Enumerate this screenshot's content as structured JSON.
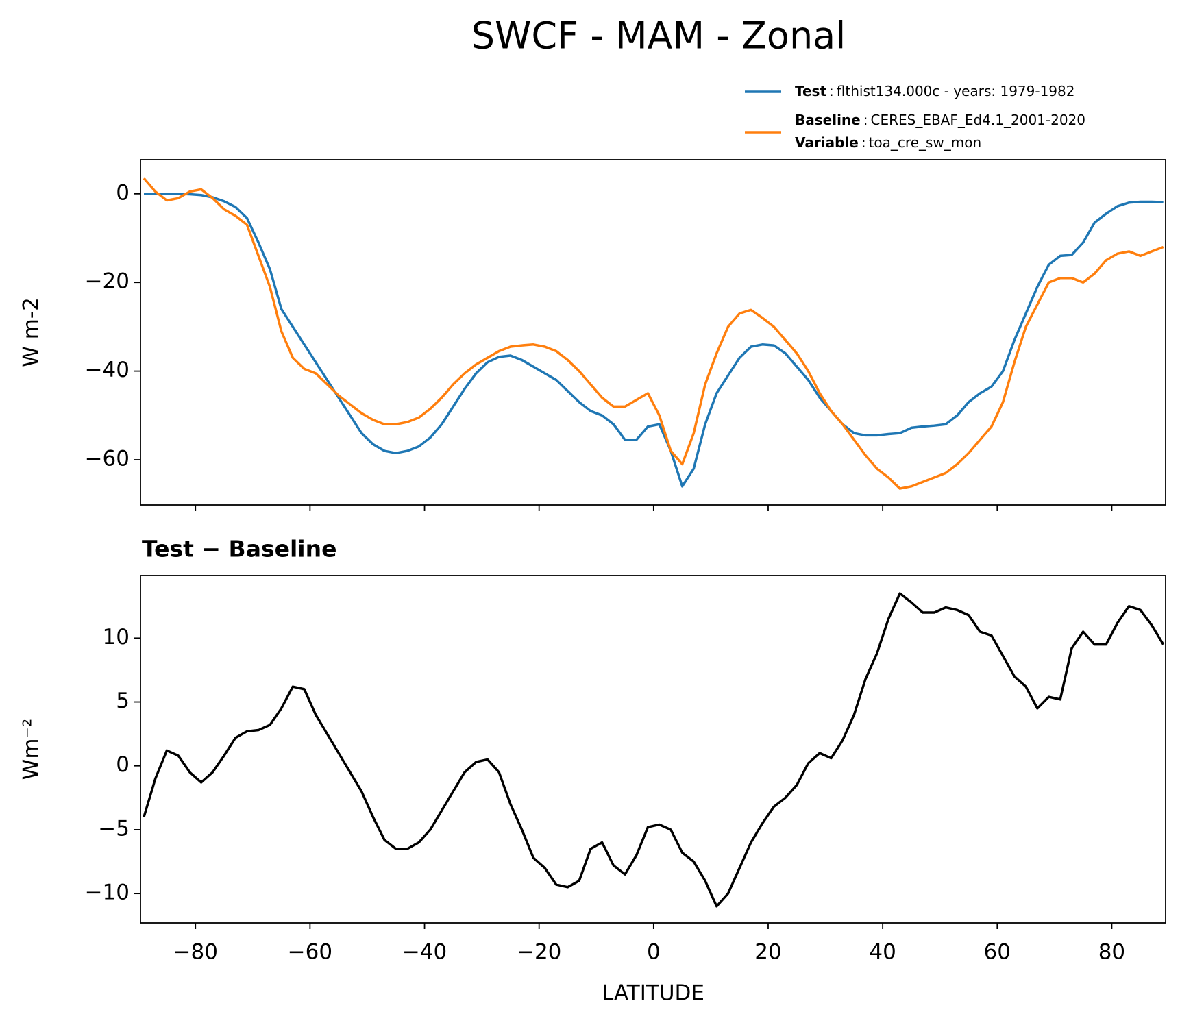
{
  "title": "SWCF - MAM - Zonal",
  "chart_data": [
    {
      "type": "line",
      "ylabel": "W m-2",
      "legend_separator": ":",
      "legend_note": {
        "label": "Variable",
        "text": "toa_cre_sw_mon"
      },
      "x": [
        -89,
        -87,
        -85,
        -83,
        -81,
        -79,
        -77,
        -75,
        -73,
        -71,
        -69,
        -67,
        -65,
        -63,
        -61,
        -59,
        -57,
        -55,
        -53,
        -51,
        -49,
        -47,
        -45,
        -43,
        -41,
        -39,
        -37,
        -35,
        -33,
        -31,
        -29,
        -27,
        -25,
        -23,
        -21,
        -19,
        -17,
        -15,
        -13,
        -11,
        -9,
        -7,
        -5,
        -3,
        -1,
        1,
        3,
        5,
        7,
        9,
        11,
        13,
        15,
        17,
        19,
        21,
        23,
        25,
        27,
        29,
        31,
        33,
        35,
        37,
        39,
        41,
        43,
        45,
        47,
        49,
        51,
        53,
        55,
        57,
        59,
        61,
        63,
        65,
        67,
        69,
        71,
        73,
        75,
        77,
        79,
        81,
        83,
        85,
        87,
        89
      ],
      "series": [
        {
          "name": "Test",
          "description": "flthist134.000c - years: 1979-1982",
          "color": "#1f77b4",
          "values": [
            0,
            0,
            0,
            0,
            -0.1,
            -0.3,
            -0.8,
            -1.7,
            -3,
            -5.5,
            -11,
            -17,
            -26,
            -30,
            -34,
            -38,
            -42,
            -46,
            -50,
            -54,
            -56.5,
            -58,
            -58.5,
            -58,
            -57,
            -55,
            -52,
            -48,
            -44,
            -40.5,
            -38,
            -36.8,
            -36.5,
            -37.5,
            -39,
            -40.5,
            -42,
            -44.5,
            -47,
            -49,
            -50,
            -52,
            -55.5,
            -55.5,
            -52.5,
            -52,
            -58,
            -66,
            -62,
            -52,
            -45,
            -41,
            -37,
            -34.5,
            -34,
            -34.2,
            -36,
            -39,
            -42,
            -46,
            -49,
            -52,
            -54,
            -54.5,
            -54.5,
            -54.2,
            -54,
            -52.8,
            -52.5,
            -52.3,
            -52,
            -50,
            -47,
            -45,
            -43.5,
            -40,
            -33,
            -27,
            -21,
            -16,
            -14,
            -13.8,
            -11,
            -6.5,
            -4.5,
            -2.8,
            -2,
            -1.8,
            -1.8,
            -1.9
          ]
        },
        {
          "name": "Baseline",
          "description": "CERES_EBAF_Ed4.1_2001-2020",
          "color": "#ff7f0e",
          "values": [
            3.5,
            0.5,
            -1.5,
            -1,
            0.5,
            1,
            -1,
            -3.5,
            -5,
            -7,
            -14,
            -21,
            -31,
            -37,
            -39.5,
            -40.5,
            -43,
            -45.5,
            -47.5,
            -49.5,
            -51,
            -52,
            -52,
            -51.5,
            -50.5,
            -48.5,
            -46,
            -43,
            -40.5,
            -38.5,
            -37,
            -35.5,
            -34.5,
            -34.2,
            -34,
            -34.5,
            -35.5,
            -37.5,
            -40,
            -43,
            -46,
            -48,
            -48,
            -46.5,
            -45,
            -50,
            -58,
            -61,
            -54,
            -43,
            -36,
            -30,
            -27,
            -26.2,
            -28,
            -30,
            -33,
            -36,
            -40,
            -45,
            -49,
            -52,
            -55.5,
            -59,
            -62,
            -64,
            -66.5,
            -66,
            -65,
            -64,
            -63,
            -61,
            -58.5,
            -55.5,
            -52.5,
            -47,
            -38,
            -30,
            -25,
            -20,
            -19,
            -19,
            -20,
            -18,
            -15,
            -13.5,
            -13,
            -14,
            -13,
            -12
          ]
        }
      ],
      "xlim": [
        -89.6,
        89.4
      ],
      "xticks": [
        -80,
        -60,
        -40,
        -20,
        0,
        20,
        40,
        60,
        80
      ],
      "ylim": [
        -70.2,
        7.7
      ],
      "yticks": [
        {
          "value": -60,
          "label": "−60"
        },
        {
          "value": -40,
          "label": "−40"
        },
        {
          "value": -20,
          "label": "−20"
        },
        0
      ]
    },
    {
      "type": "line",
      "title": "Test − Baseline",
      "ylabel": "Wm⁻²",
      "xlabel": "LATITUDE",
      "x": [
        -89,
        -87,
        -85,
        -83,
        -81,
        -79,
        -77,
        -75,
        -73,
        -71,
        -69,
        -67,
        -65,
        -63,
        -61,
        -59,
        -57,
        -55,
        -53,
        -51,
        -49,
        -47,
        -45,
        -43,
        -41,
        -39,
        -37,
        -35,
        -33,
        -31,
        -29,
        -27,
        -25,
        -23,
        -21,
        -19,
        -17,
        -15,
        -13,
        -11,
        -9,
        -7,
        -5,
        -3,
        -1,
        1,
        3,
        5,
        7,
        9,
        11,
        13,
        15,
        17,
        19,
        21,
        23,
        25,
        27,
        29,
        31,
        33,
        35,
        37,
        39,
        41,
        43,
        45,
        47,
        49,
        51,
        53,
        55,
        57,
        59,
        61,
        63,
        65,
        67,
        69,
        71,
        73,
        75,
        77,
        79,
        81,
        83,
        85,
        87,
        89
      ],
      "series": [
        {
          "color": "#000000",
          "values": [
            -4,
            -1,
            1.2,
            0.8,
            -0.5,
            -1.3,
            -0.5,
            0.8,
            2.2,
            2.7,
            2.8,
            3.2,
            4.5,
            6.2,
            6,
            4,
            2.5,
            1,
            -0.5,
            -2,
            -4,
            -5.8,
            -6.5,
            -6.5,
            -6,
            -5,
            -3.5,
            -2,
            -0.5,
            0.3,
            0.5,
            -0.5,
            -3,
            -5,
            -7.2,
            -8,
            -9.3,
            -9.5,
            -9,
            -6.5,
            -6,
            -7.8,
            -8.5,
            -7,
            -4.8,
            -4.6,
            -5,
            -6.8,
            -7.5,
            -9,
            -11,
            -10,
            -8,
            -6,
            -4.5,
            -3.2,
            -2.5,
            -1.5,
            0.2,
            1,
            0.6,
            2,
            4,
            6.8,
            8.8,
            11.5,
            13.5,
            12.8,
            12,
            12,
            12.4,
            12.2,
            11.8,
            10.5,
            10.2,
            8.6,
            7,
            6.2,
            4.5,
            5.4,
            5.2,
            9.2,
            10.5,
            9.5,
            9.5,
            11.2,
            12.5,
            12.2,
            11,
            9.5
          ]
        }
      ],
      "xlim": [
        -89.6,
        89.4
      ],
      "xticks": [
        {
          "value": -80,
          "label": "−80"
        },
        {
          "value": -60,
          "label": "−60"
        },
        {
          "value": -40,
          "label": "−40"
        },
        {
          "value": -20,
          "label": "−20"
        },
        0,
        20,
        40,
        60,
        80
      ],
      "ylim": [
        -12.3,
        14.9
      ],
      "yticks": [
        {
          "value": -10,
          "label": "−10"
        },
        {
          "value": -5,
          "label": "−5"
        },
        0,
        5,
        10
      ]
    }
  ]
}
